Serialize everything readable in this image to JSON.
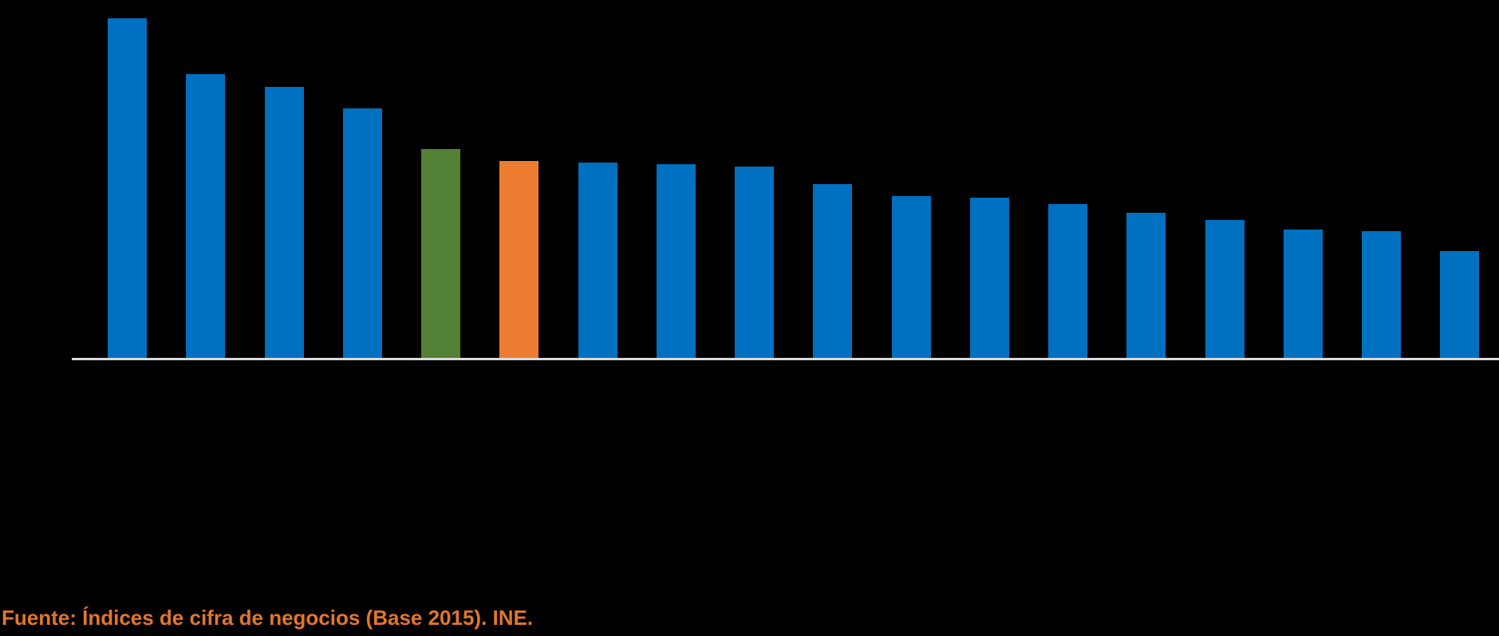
{
  "page": {
    "background_color": "#000000"
  },
  "chart_data": {
    "type": "bar",
    "title": "",
    "xlabel": "",
    "ylabel": "",
    "units": "relative bar height, tallest bar = 100 (axis scale and category labels not visible in image)",
    "grid": false,
    "legend": "none",
    "axis_line_color": "#D9D9D9",
    "colors": {
      "default_blue": "#0070C0",
      "highlight_green": "#538135",
      "highlight_orange": "#ED7D31"
    },
    "bars": [
      {
        "value": 100.0,
        "color": "#0070C0"
      },
      {
        "value": 83.6,
        "color": "#0070C0"
      },
      {
        "value": 79.8,
        "color": "#0070C0"
      },
      {
        "value": 73.5,
        "color": "#0070C0"
      },
      {
        "value": 61.5,
        "color": "#538135"
      },
      {
        "value": 58.0,
        "color": "#ED7D31"
      },
      {
        "value": 57.5,
        "color": "#0070C0"
      },
      {
        "value": 57.0,
        "color": "#0070C0"
      },
      {
        "value": 56.3,
        "color": "#0070C0"
      },
      {
        "value": 51.2,
        "color": "#0070C0"
      },
      {
        "value": 47.7,
        "color": "#0070C0"
      },
      {
        "value": 47.2,
        "color": "#0070C0"
      },
      {
        "value": 45.3,
        "color": "#0070C0"
      },
      {
        "value": 42.7,
        "color": "#0070C0"
      },
      {
        "value": 40.6,
        "color": "#0070C0"
      },
      {
        "value": 37.8,
        "color": "#0070C0"
      },
      {
        "value": 37.3,
        "color": "#0070C0"
      },
      {
        "value": 31.5,
        "color": "#0070C0"
      }
    ]
  },
  "footer": {
    "source_text": "Fuente: Índices de cifra de negocios (Base 2015). INE.",
    "color": "#E2762D"
  }
}
